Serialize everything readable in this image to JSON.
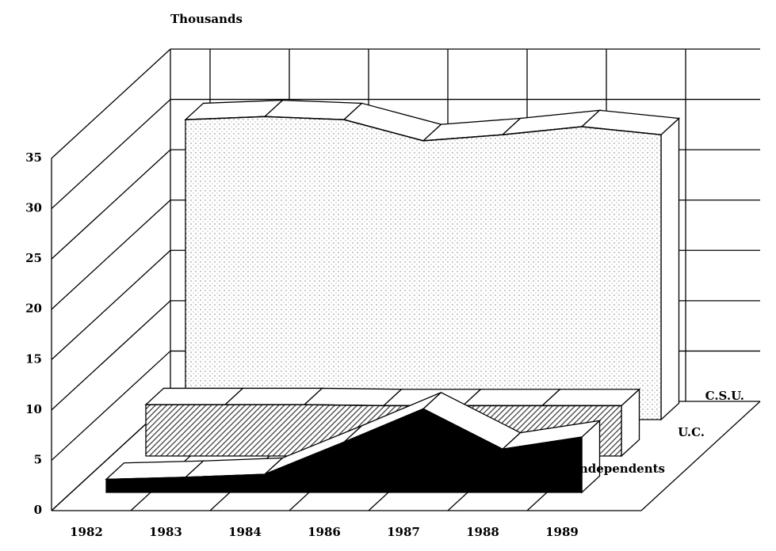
{
  "chart_data": {
    "type": "area3d",
    "y_axis_label": "Thousands",
    "categories": [
      "1982",
      "1983",
      "1984",
      "1986",
      "1987",
      "1988",
      "1989"
    ],
    "ylim": [
      0,
      35
    ],
    "yticks": [
      0,
      5,
      10,
      15,
      20,
      25,
      30,
      35
    ],
    "grid": true,
    "series": [
      {
        "name": "C.S.U.",
        "color": "#bdbdbd",
        "pattern": "stipple",
        "values": [
          29.8,
          30.1,
          29.8,
          27.7,
          28.3,
          29.1,
          28.3
        ]
      },
      {
        "name": "U.C.",
        "color": "#333333",
        "pattern": "hatch",
        "values": [
          5.1,
          5.1,
          5.1,
          5.0,
          5.0,
          5.0,
          5.0
        ]
      },
      {
        "name": "Independents",
        "color": "#000000",
        "pattern": "solid",
        "values": [
          1.3,
          1.5,
          1.8,
          5.0,
          8.3,
          4.3,
          5.5
        ]
      }
    ]
  }
}
